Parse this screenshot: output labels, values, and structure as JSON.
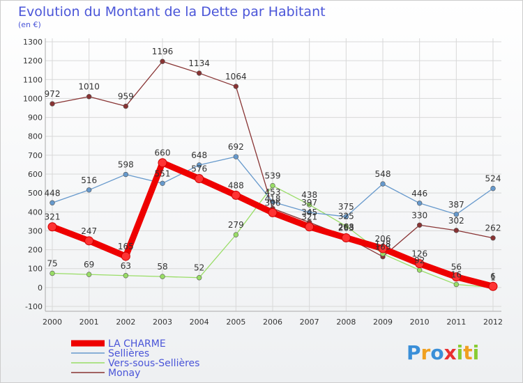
{
  "chart_data": {
    "type": "line",
    "title": "Evolution du Montant de la Dette par Habitant",
    "subtitle": "(en €)",
    "x": [
      "2000",
      "2001",
      "2002",
      "2003",
      "2004",
      "2005",
      "2006",
      "2007",
      "2008",
      "2009",
      "2010",
      "2011",
      "2012"
    ],
    "ylim": [
      -100,
      1300
    ],
    "yticks": [
      "-100",
      "0",
      "100",
      "200",
      "300",
      "400",
      "500",
      "600",
      "700",
      "800",
      "900",
      "1000",
      "1100",
      "1200",
      "1300"
    ],
    "grid": true,
    "legend_position": "bottom-left",
    "series": [
      {
        "name": "LA CHARME",
        "color": "#ee0000",
        "values": [
          321,
          247,
          165,
          660,
          576,
          488,
          396,
          321,
          263,
          206,
          126,
          56,
          6
        ],
        "labels": [
          "321",
          "247",
          "165",
          "660",
          "576",
          "488",
          "396",
          "321",
          "263",
          "206",
          "126",
          "56",
          "6"
        ]
      },
      {
        "name": "Sellières",
        "color": "#6699cc",
        "values": [
          448,
          516,
          598,
          551,
          648,
          692,
          453,
          397,
          375,
          548,
          446,
          387,
          524
        ],
        "labels": [
          "448",
          "516",
          "598",
          "551",
          "648",
          "692",
          "453",
          "397",
          "375",
          "548",
          "446",
          "387",
          "524"
        ]
      },
      {
        "name": "Vers-sous-Sellières",
        "color": "#99dd66",
        "values": [
          75,
          69,
          63,
          58,
          52,
          279,
          539,
          438,
          325,
          178,
          92,
          16,
          1
        ],
        "labels": [
          "75",
          "69",
          "63",
          "58",
          "52",
          "279",
          "539",
          "438",
          "325",
          "178",
          "92",
          "16",
          "1"
        ]
      },
      {
        "name": "Monay",
        "color": "#883333",
        "values": [
          972,
          1010,
          959,
          1196,
          1134,
          1064,
          418,
          345,
          268,
          163,
          330,
          302,
          262
        ],
        "labels": [
          "972",
          "1010",
          "959",
          "1196",
          "1134",
          "1064",
          "418",
          "345",
          "268",
          "163",
          "330",
          "302",
          "262"
        ]
      }
    ]
  },
  "logo": {
    "text": "Proxiti"
  }
}
